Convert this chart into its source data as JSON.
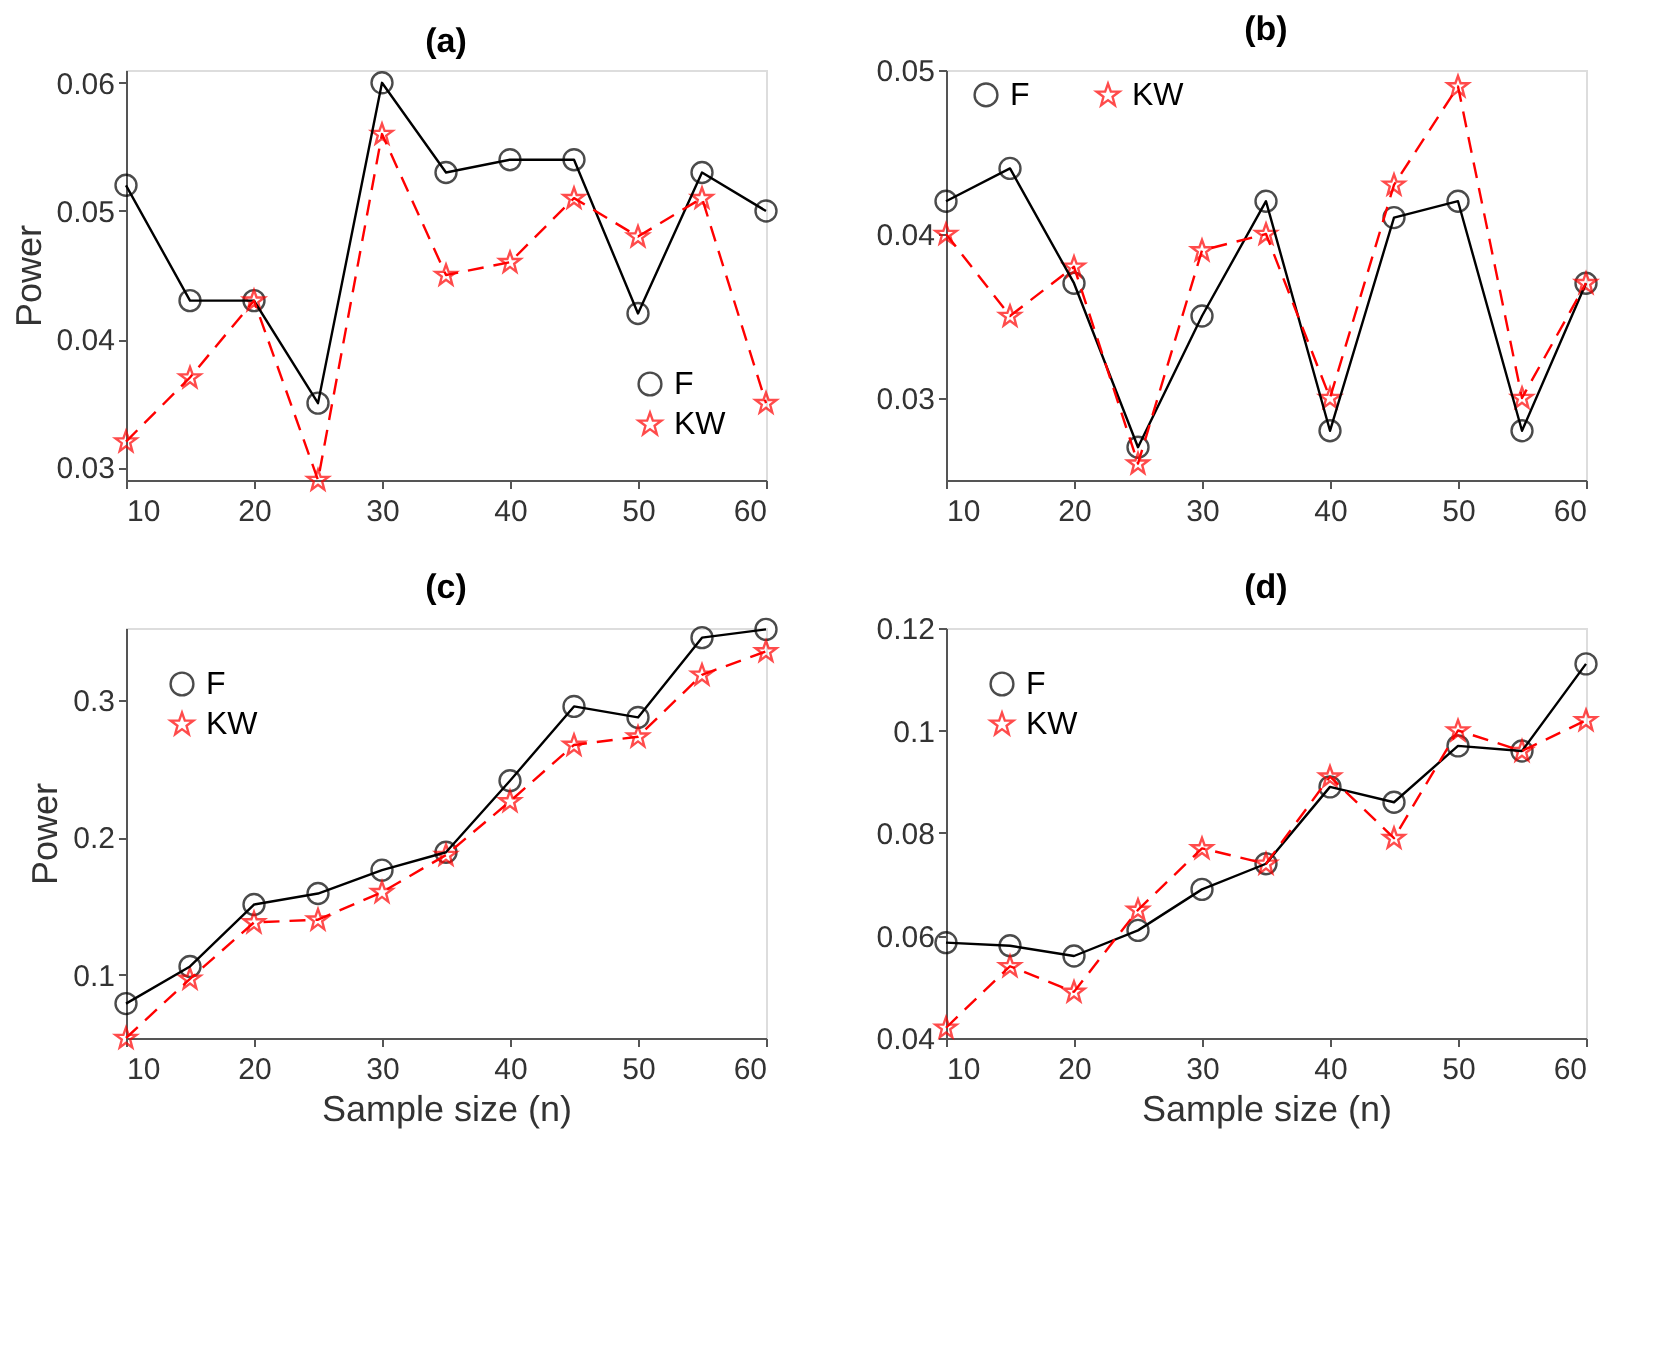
{
  "chart_data": [
    {
      "type": "line",
      "title": "(a)",
      "ylabel": "Power",
      "x": [
        10,
        15,
        20,
        25,
        30,
        35,
        40,
        45,
        50,
        55,
        60
      ],
      "xlim": [
        10,
        60
      ],
      "xticks": [
        10,
        20,
        30,
        40,
        50,
        60
      ],
      "ylim": [
        0.029,
        0.061
      ],
      "yticks": [
        0.03,
        0.04,
        0.05,
        0.06
      ],
      "grid": false,
      "legend": "bottom right",
      "series": [
        {
          "name": "F",
          "color": "#000000",
          "marker": "circle",
          "line_style": "solid",
          "values": [
            0.052,
            0.043,
            0.043,
            0.035,
            0.06,
            0.053,
            0.054,
            0.054,
            0.042,
            0.053,
            0.05
          ]
        },
        {
          "name": "KW",
          "color": "#ff0000",
          "marker": "star",
          "line_style": "dashed",
          "values": [
            0.032,
            0.037,
            0.043,
            0.029,
            0.056,
            0.045,
            0.046,
            0.051,
            0.048,
            0.051,
            0.035
          ]
        }
      ]
    },
    {
      "type": "line",
      "title": "(b)",
      "x": [
        10,
        15,
        20,
        25,
        30,
        35,
        40,
        45,
        50,
        55,
        60
      ],
      "xlim": [
        10,
        60
      ],
      "xticks": [
        10,
        20,
        30,
        40,
        50,
        60
      ],
      "ylim": [
        0.025,
        0.05
      ],
      "yticks": [
        0.03,
        0.04,
        0.05
      ],
      "grid": false,
      "legend": "top",
      "series": [
        {
          "name": "F",
          "color": "#000000",
          "marker": "circle",
          "line_style": "solid",
          "values": [
            0.042,
            0.044,
            0.037,
            0.027,
            0.035,
            0.042,
            0.028,
            0.041,
            0.042,
            0.028,
            0.037
          ]
        },
        {
          "name": "KW",
          "color": "#ff0000",
          "marker": "star",
          "line_style": "dashed",
          "values": [
            0.04,
            0.035,
            0.038,
            0.026,
            0.039,
            0.04,
            0.03,
            0.043,
            0.049,
            0.03,
            0.037
          ]
        }
      ]
    },
    {
      "type": "line",
      "title": "(c)",
      "xlabel": "Sample size (n)",
      "ylabel": "Power",
      "x": [
        10,
        15,
        20,
        25,
        30,
        35,
        40,
        45,
        50,
        55,
        60
      ],
      "xlim": [
        10,
        60
      ],
      "xticks": [
        10,
        20,
        30,
        40,
        50,
        60
      ],
      "ylim": [
        0.054,
        0.352
      ],
      "yticks": [
        0.1,
        0.2,
        0.3
      ],
      "grid": false,
      "legend": "top left",
      "series": [
        {
          "name": "F",
          "color": "#000000",
          "marker": "circle",
          "line_style": "solid",
          "values": [
            0.079,
            0.106,
            0.151,
            0.159,
            0.176,
            0.189,
            0.241,
            0.295,
            0.287,
            0.345,
            0.351
          ]
        },
        {
          "name": "KW",
          "color": "#ff0000",
          "marker": "star",
          "line_style": "dashed",
          "values": [
            0.054,
            0.097,
            0.138,
            0.14,
            0.16,
            0.187,
            0.226,
            0.267,
            0.273,
            0.318,
            0.335
          ]
        }
      ]
    },
    {
      "type": "line",
      "title": "(d)",
      "xlabel": "Sample size (n)",
      "x": [
        10,
        15,
        20,
        25,
        30,
        35,
        40,
        45,
        50,
        55,
        60
      ],
      "xlim": [
        10,
        60
      ],
      "xticks": [
        10,
        20,
        30,
        40,
        50,
        60
      ],
      "ylim": [
        0.04,
        0.12
      ],
      "yticks": [
        0.04,
        0.06,
        0.08,
        0.1,
        0.12
      ],
      "grid": false,
      "legend": "top left",
      "series": [
        {
          "name": "F",
          "color": "#000000",
          "marker": "circle",
          "line_style": "solid",
          "values": [
            0.0586,
            0.058,
            0.056,
            0.061,
            0.069,
            0.074,
            0.089,
            0.086,
            0.097,
            0.096,
            0.113
          ]
        },
        {
          "name": "KW",
          "color": "#ff0000",
          "marker": "star",
          "line_style": "dashed",
          "values": [
            0.042,
            0.054,
            0.049,
            0.065,
            0.077,
            0.074,
            0.091,
            0.079,
            0.1,
            0.096,
            0.102
          ]
        }
      ]
    }
  ]
}
